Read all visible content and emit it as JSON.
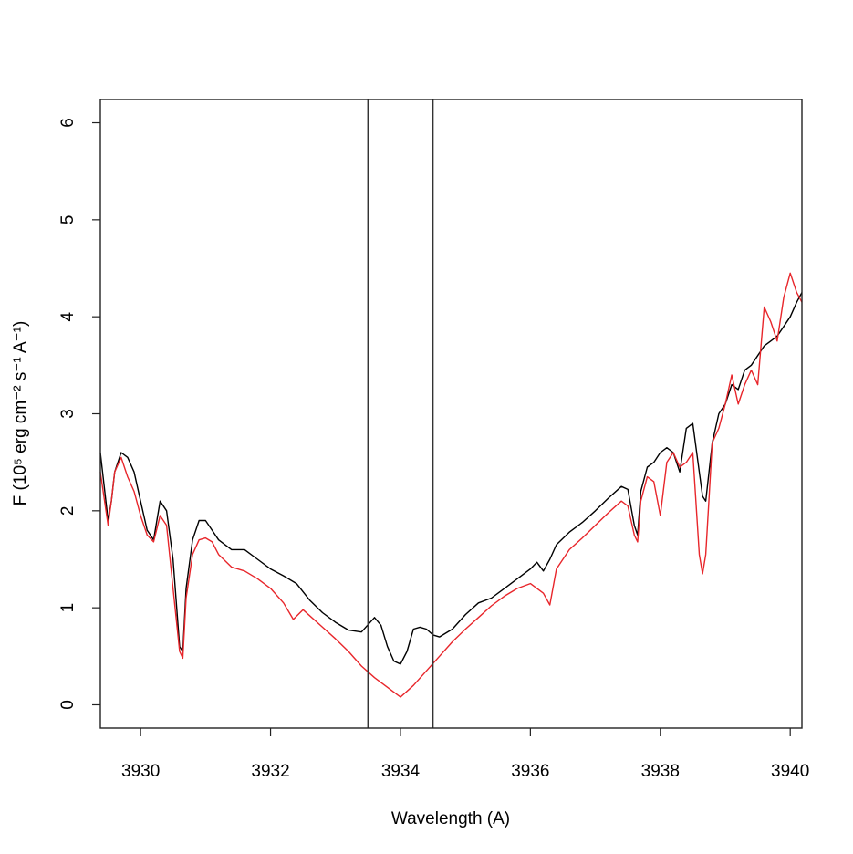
{
  "chart_data": {
    "type": "line",
    "title": "",
    "xlabel": "Wavelength (A)",
    "ylabel": "F (10⁵ erg cm⁻² s⁻¹ A⁻¹)",
    "xlim": [
      3929.38,
      3940.18
    ],
    "ylim": [
      -0.24,
      6.24
    ],
    "x_ticks": [
      3930,
      3932,
      3934,
      3936,
      3938,
      3940
    ],
    "x_tick_labels": [
      "3930",
      "3932",
      "3934",
      "3936",
      "3938",
      "3940"
    ],
    "y_ticks": [
      0,
      1,
      2,
      3,
      4,
      5,
      6
    ],
    "y_tick_labels": [
      "0",
      "1",
      "2",
      "3",
      "4",
      "5",
      "6"
    ],
    "grid": false,
    "vertical_lines": [
      3933.5,
      3934.5
    ],
    "series": [
      {
        "color": "#000000",
        "x": [
          3929.38,
          3929.5,
          3929.55,
          3929.6,
          3929.7,
          3929.8,
          3929.9,
          3930.0,
          3930.1,
          3930.2,
          3930.3,
          3930.4,
          3930.5,
          3930.6,
          3930.65,
          3930.7,
          3930.8,
          3930.9,
          3931.0,
          3931.1,
          3931.2,
          3931.4,
          3931.6,
          3931.8,
          3932.0,
          3932.2,
          3932.4,
          3932.6,
          3932.8,
          3933.0,
          3933.2,
          3933.4,
          3933.6,
          3933.7,
          3933.8,
          3933.9,
          3934.0,
          3934.1,
          3934.2,
          3934.3,
          3934.4,
          3934.5,
          3934.6,
          3934.8,
          3935.0,
          3935.2,
          3935.4,
          3935.6,
          3935.8,
          3936.0,
          3936.1,
          3936.2,
          3936.3,
          3936.4,
          3936.6,
          3936.8,
          3937.0,
          3937.2,
          3937.4,
          3937.5,
          3937.6,
          3937.65,
          3937.7,
          3937.8,
          3937.9,
          3938.0,
          3938.1,
          3938.2,
          3938.3,
          3938.4,
          3938.5,
          3938.6,
          3938.65,
          3938.7,
          3938.8,
          3938.9,
          3939.0,
          3939.1,
          3939.2,
          3939.3,
          3939.4,
          3939.5,
          3939.6,
          3939.7,
          3939.8,
          3939.9,
          3940.0,
          3940.1,
          3940.18
        ],
        "y": [
          2.6,
          1.9,
          2.1,
          2.4,
          2.6,
          2.55,
          2.4,
          2.1,
          1.8,
          1.7,
          2.1,
          2.0,
          1.5,
          0.6,
          0.55,
          1.2,
          1.7,
          1.9,
          1.9,
          1.8,
          1.7,
          1.6,
          1.6,
          1.5,
          1.4,
          1.33,
          1.25,
          1.08,
          0.95,
          0.85,
          0.77,
          0.75,
          0.9,
          0.82,
          0.6,
          0.45,
          0.42,
          0.55,
          0.78,
          0.8,
          0.78,
          0.72,
          0.7,
          0.78,
          0.93,
          1.05,
          1.1,
          1.2,
          1.3,
          1.4,
          1.47,
          1.38,
          1.5,
          1.65,
          1.78,
          1.88,
          2.0,
          2.13,
          2.25,
          2.22,
          1.85,
          1.75,
          2.2,
          2.45,
          2.5,
          2.6,
          2.65,
          2.6,
          2.4,
          2.85,
          2.9,
          2.4,
          2.15,
          2.1,
          2.7,
          3.0,
          3.1,
          3.3,
          3.25,
          3.45,
          3.5,
          3.6,
          3.7,
          3.75,
          3.8,
          3.9,
          4.0,
          4.15,
          4.25
        ]
      },
      {
        "color": "#e8262b",
        "x": [
          3929.38,
          3929.5,
          3929.55,
          3929.6,
          3929.7,
          3929.8,
          3929.9,
          3930.0,
          3930.1,
          3930.2,
          3930.3,
          3930.4,
          3930.5,
          3930.6,
          3930.65,
          3930.7,
          3930.8,
          3930.9,
          3931.0,
          3931.1,
          3931.2,
          3931.4,
          3931.6,
          3931.8,
          3932.0,
          3932.2,
          3932.35,
          3932.5,
          3932.8,
          3933.0,
          3933.2,
          3933.4,
          3933.6,
          3933.8,
          3934.0,
          3934.2,
          3934.4,
          3934.6,
          3934.8,
          3935.0,
          3935.2,
          3935.4,
          3935.6,
          3935.8,
          3936.0,
          3936.2,
          3936.3,
          3936.4,
          3936.6,
          3936.8,
          3937.0,
          3937.2,
          3937.4,
          3937.5,
          3937.6,
          3937.65,
          3937.7,
          3937.8,
          3937.9,
          3938.0,
          3938.1,
          3938.2,
          3938.3,
          3938.4,
          3938.5,
          3938.6,
          3938.65,
          3938.7,
          3938.8,
          3938.9,
          3939.0,
          3939.1,
          3939.2,
          3939.3,
          3939.4,
          3939.5,
          3939.6,
          3939.7,
          3939.8,
          3939.9,
          3940.0,
          3940.1,
          3940.18
        ],
        "y": [
          2.4,
          1.85,
          2.1,
          2.4,
          2.55,
          2.35,
          2.2,
          1.95,
          1.75,
          1.68,
          1.95,
          1.85,
          1.2,
          0.55,
          0.48,
          1.1,
          1.55,
          1.7,
          1.72,
          1.68,
          1.55,
          1.42,
          1.38,
          1.3,
          1.2,
          1.05,
          0.88,
          0.98,
          0.8,
          0.68,
          0.55,
          0.4,
          0.28,
          0.18,
          0.08,
          0.2,
          0.35,
          0.5,
          0.65,
          0.78,
          0.9,
          1.02,
          1.12,
          1.2,
          1.25,
          1.15,
          1.03,
          1.4,
          1.6,
          1.72,
          1.85,
          1.98,
          2.1,
          2.05,
          1.75,
          1.68,
          2.1,
          2.35,
          2.3,
          1.95,
          2.5,
          2.6,
          2.45,
          2.5,
          2.6,
          1.55,
          1.35,
          1.55,
          2.7,
          2.85,
          3.1,
          3.4,
          3.1,
          3.3,
          3.45,
          3.3,
          4.1,
          3.95,
          3.75,
          4.2,
          4.45,
          4.25,
          4.15
        ]
      }
    ]
  }
}
